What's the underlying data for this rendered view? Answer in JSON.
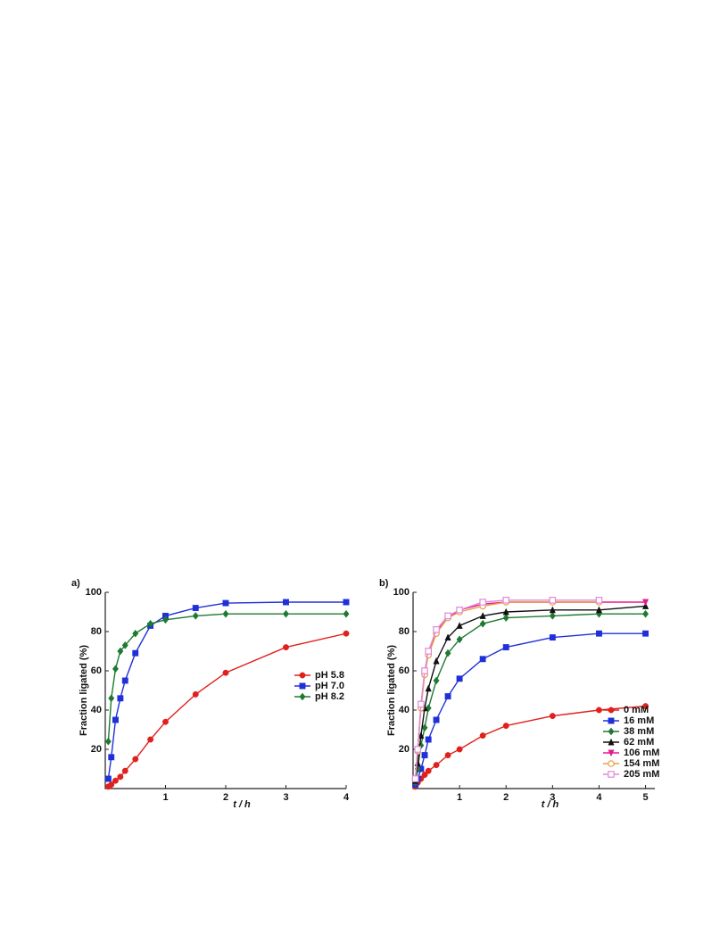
{
  "chart_data": [
    {
      "type": "line",
      "title": "a)",
      "xlabel": "t / h",
      "ylabel": "Fraction ligated (%)",
      "x": [
        0.05,
        0.1,
        0.17,
        0.25,
        0.33,
        0.5,
        0.75,
        1,
        1.5,
        2,
        3,
        4
      ],
      "xlim": [
        0,
        4
      ],
      "xticks": [
        1,
        2,
        3,
        4
      ],
      "ylim": [
        0,
        100
      ],
      "yticks": [
        20,
        40,
        60,
        80,
        100
      ],
      "legend": "center right",
      "series": [
        {
          "name": "pH 5.8",
          "color": "#e0201c",
          "marker": "circle",
          "values": [
            1,
            2,
            4,
            6,
            9,
            15,
            25,
            34,
            48,
            59,
            72,
            79
          ]
        },
        {
          "name": "pH 7.0",
          "color": "#2030d8",
          "marker": "square",
          "values": [
            5,
            16,
            35,
            46,
            55,
            69,
            83,
            88,
            92,
            94.5,
            95,
            95
          ]
        },
        {
          "name": "pH 8.2",
          "color": "#1e7a30",
          "marker": "diamond",
          "values": [
            24,
            46,
            61,
            70,
            73,
            79,
            84,
            86,
            88,
            89,
            89,
            89
          ]
        }
      ]
    },
    {
      "type": "line",
      "title": "b)",
      "xlabel": "t / h",
      "ylabel": "Fraction ligated (%)",
      "x": [
        0.05,
        0.1,
        0.17,
        0.25,
        0.33,
        0.5,
        0.75,
        1,
        1.5,
        2,
        3,
        4,
        5
      ],
      "xlim": [
        0,
        5.2
      ],
      "xticks": [
        1,
        2,
        3,
        4,
        5
      ],
      "ylim": [
        0,
        100
      ],
      "yticks": [
        20,
        40,
        60,
        80,
        100
      ],
      "legend": "lower right",
      "series": [
        {
          "name": "0 mM",
          "color": "#e0201c",
          "marker": "circle",
          "values": [
            1,
            3,
            5,
            7,
            9,
            12,
            17,
            20,
            27,
            32,
            37,
            40,
            42
          ]
        },
        {
          "name": "16 mM",
          "color": "#2030d8",
          "marker": "square",
          "values": [
            2,
            5,
            10,
            17,
            25,
            35,
            47,
            56,
            66,
            72,
            77,
            79,
            79
          ]
        },
        {
          "name": "38 mM",
          "color": "#1e7a30",
          "marker": "diamond",
          "values": [
            3,
            10,
            22,
            31,
            41,
            55,
            69,
            76,
            84,
            87,
            88,
            89,
            89
          ]
        },
        {
          "name": "62 mM",
          "color": "#111111",
          "marker": "triangle",
          "values": [
            4,
            13,
            27,
            41,
            51,
            65,
            77,
            83,
            88,
            90,
            91,
            91,
            93
          ]
        },
        {
          "name": "106 mM",
          "color": "#e5198a",
          "marker": "triangle-down",
          "values": [
            5,
            20,
            42,
            59,
            69,
            80,
            87,
            91,
            94,
            95,
            95,
            95,
            95
          ]
        },
        {
          "name": "154 mM",
          "color": "#e8a040",
          "marker": "open-circle",
          "values": [
            5,
            19,
            41,
            58,
            68,
            79,
            87,
            90,
            93,
            95,
            95,
            95,
            null
          ]
        },
        {
          "name": "205 mM",
          "color": "#e088d8",
          "marker": "open-square",
          "values": [
            5,
            20,
            43,
            60,
            70,
            81,
            88,
            91,
            95,
            96,
            96,
            96,
            null
          ]
        }
      ]
    }
  ]
}
